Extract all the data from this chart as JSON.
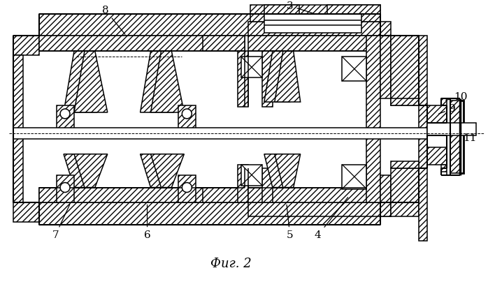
{
  "caption": "Фиг. 2",
  "bg_color": "#ffffff",
  "line_color": "#000000"
}
